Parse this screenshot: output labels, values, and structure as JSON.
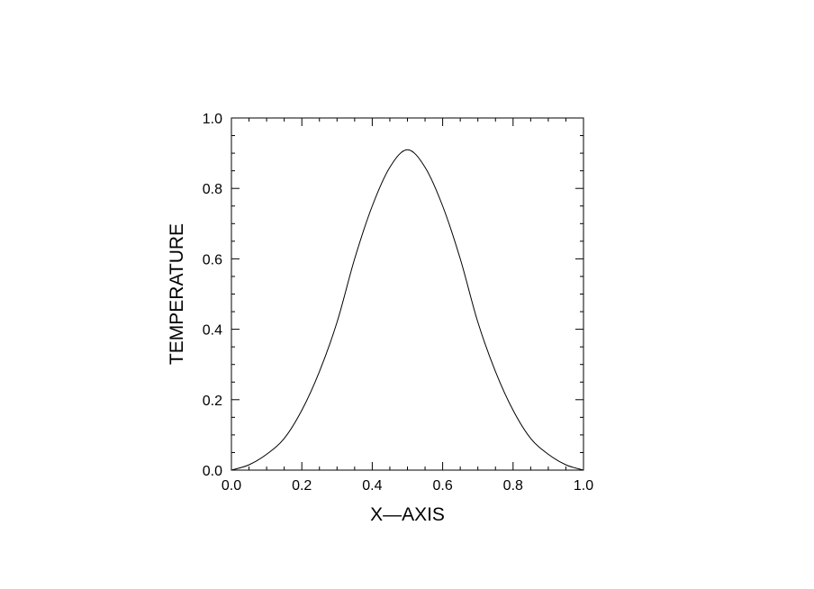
{
  "chart_data": {
    "type": "line",
    "title": "",
    "xlabel": "X—AXIS",
    "ylabel": "TEMPERATURE",
    "xlim": [
      0.0,
      1.0
    ],
    "ylim": [
      0.0,
      1.0
    ],
    "xticks": [
      "0.0",
      "0.2",
      "0.4",
      "0.6",
      "0.8",
      "1.0"
    ],
    "yticks": [
      "0.0",
      "0.2",
      "0.4",
      "0.6",
      "0.8",
      "1.0"
    ],
    "grid": false,
    "legend": "none",
    "line_color": "#000000",
    "series": [
      {
        "x": [
          0.0,
          0.05,
          0.1,
          0.15,
          0.2,
          0.25,
          0.3,
          0.35,
          0.4,
          0.45,
          0.5,
          0.55,
          0.6,
          0.65,
          0.7,
          0.75,
          0.8,
          0.85,
          0.9,
          0.95,
          1.0
        ],
        "y": [
          0.0,
          0.015,
          0.045,
          0.09,
          0.17,
          0.28,
          0.42,
          0.6,
          0.75,
          0.86,
          0.91,
          0.86,
          0.75,
          0.6,
          0.42,
          0.28,
          0.17,
          0.09,
          0.045,
          0.015,
          0.0
        ]
      }
    ]
  }
}
